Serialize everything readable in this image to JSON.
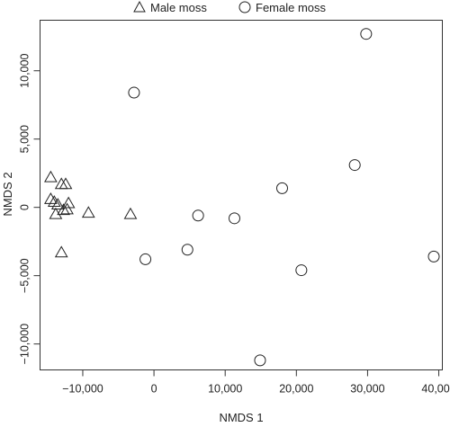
{
  "chart_data": {
    "type": "scatter",
    "title": "",
    "xlabel": "NMDS 1",
    "ylabel": "NMDS 2",
    "xlim": [
      -16000,
      40500
    ],
    "ylim": [
      -11900,
      13700
    ],
    "grid": false,
    "legend_position": "top",
    "x_ticks": [
      -10000,
      0,
      10000,
      20000,
      30000,
      40000
    ],
    "x_tick_labels": [
      "−10,000",
      "0",
      "10,000",
      "20,000",
      "30,000",
      "40,000"
    ],
    "y_ticks": [
      -10000,
      -5000,
      0,
      5000,
      10000
    ],
    "y_tick_labels": [
      "−10,000",
      "−5,000",
      "0",
      "5,000",
      "10,000"
    ],
    "series": [
      {
        "name": "Male moss",
        "marker": "triangle",
        "points": [
          {
            "x": -14500,
            "y": 2200
          },
          {
            "x": -13000,
            "y": 1700
          },
          {
            "x": -12400,
            "y": 1700
          },
          {
            "x": -14500,
            "y": 600
          },
          {
            "x": -14000,
            "y": 400
          },
          {
            "x": -13500,
            "y": 200
          },
          {
            "x": -12000,
            "y": 300
          },
          {
            "x": -13800,
            "y": -500
          },
          {
            "x": -12700,
            "y": -200
          },
          {
            "x": -12200,
            "y": -150
          },
          {
            "x": -13000,
            "y": -3300
          },
          {
            "x": -9200,
            "y": -400
          },
          {
            "x": -3300,
            "y": -500
          }
        ]
      },
      {
        "name": "Female moss",
        "marker": "circle",
        "points": [
          {
            "x": -2800,
            "y": 8400
          },
          {
            "x": 29800,
            "y": 12700
          },
          {
            "x": 28200,
            "y": 3100
          },
          {
            "x": 18000,
            "y": 1400
          },
          {
            "x": 6200,
            "y": -600
          },
          {
            "x": 11300,
            "y": -800
          },
          {
            "x": 4700,
            "y": -3100
          },
          {
            "x": -1200,
            "y": -3800
          },
          {
            "x": 20700,
            "y": -4600
          },
          {
            "x": 39300,
            "y": -3600
          },
          {
            "x": 14900,
            "y": -11200
          }
        ]
      }
    ]
  }
}
